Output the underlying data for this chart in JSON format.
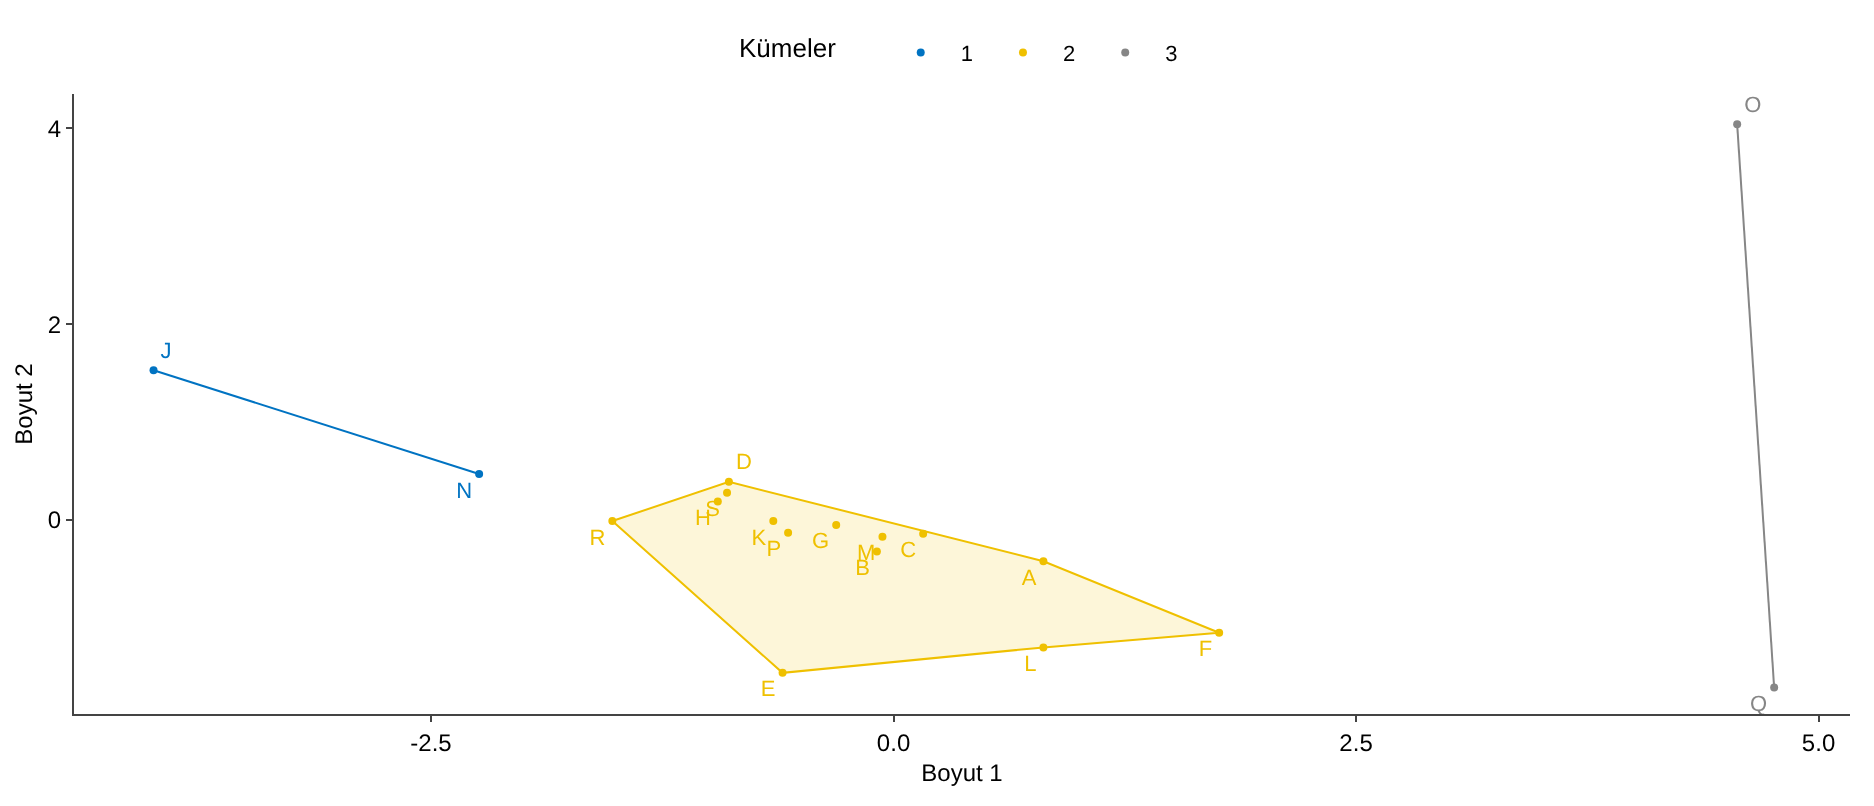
{
  "chart_data": {
    "type": "scatter",
    "xlabel": "Boyut 1",
    "ylabel": "Boyut 2",
    "legend_title": "Kümeler",
    "legend": "top",
    "grid": false,
    "marker": "circle",
    "xlim": [
      -4.43,
      5.17
    ],
    "ylim": [
      -1.98,
      4.35
    ],
    "xticks": [
      -2.5,
      {
        "value": 0,
        "label": "0.0"
      },
      2.5,
      {
        "value": 5,
        "label": "5.0"
      }
    ],
    "yticks": [
      0,
      2,
      4
    ],
    "series": [
      {
        "type": "line",
        "color": "#0073c2",
        "marker": "none",
        "x": [
          -4.0,
          -2.24
        ],
        "values": [
          1.53,
          0.47
        ]
      },
      {
        "type": "area",
        "color": "#efc000",
        "marker": "none",
        "x": [
          -1.52,
          -0.89,
          0.81,
          1.76,
          0.81,
          -0.6,
          -1.52
        ],
        "values": [
          -0.01,
          0.39,
          -0.42,
          -1.15,
          -1.3,
          -1.56,
          -0.01
        ]
      },
      {
        "type": "line",
        "color": "#868686",
        "marker": "none",
        "x": [
          4.56,
          4.76
        ],
        "values": [
          4.04,
          -1.71
        ]
      },
      {
        "name": "1",
        "color": "#0073c2",
        "x": [
          -4.0,
          -2.24
        ],
        "values": [
          1.53,
          0.47
        ],
        "value_labels": [
          "J",
          "N"
        ]
      },
      {
        "name": "2",
        "color": "#efc000",
        "x": [
          -0.89,
          -0.95,
          -0.9,
          -1.52,
          -0.65,
          -0.57,
          -0.31,
          -0.06,
          -0.09,
          0.16,
          0.81,
          0.81,
          1.76,
          -0.6
        ],
        "values": [
          0.39,
          0.19,
          0.28,
          -0.01,
          -0.01,
          -0.13,
          -0.05,
          -0.17,
          -0.32,
          -0.14,
          -0.42,
          -1.3,
          -1.15,
          -1.56
        ],
        "value_labels": [
          "D",
          "H",
          "S",
          "R",
          "K",
          "P",
          "G",
          "M",
          "B",
          "C",
          "A",
          "L",
          "F",
          "E"
        ]
      },
      {
        "name": "3",
        "color": "#868686",
        "x": [
          4.56,
          4.76
        ],
        "values": [
          4.04,
          -1.71
        ],
        "value_labels": [
          "O",
          "Q"
        ]
      }
    ]
  }
}
